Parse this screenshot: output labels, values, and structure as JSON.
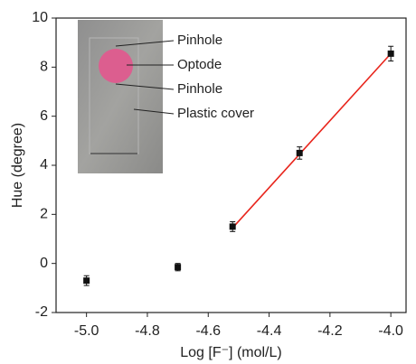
{
  "chart_data": {
    "type": "scatter",
    "xlabel": "Log [F⁻] (mol/L)",
    "ylabel": "Hue (degree)",
    "x": [
      -5.0,
      -4.7,
      -4.52,
      -4.3,
      -4.0
    ],
    "values": [
      -0.7,
      -0.15,
      1.5,
      4.5,
      8.55
    ],
    "errors": [
      0.2,
      0.15,
      0.2,
      0.25,
      0.3
    ],
    "color": "#111111",
    "fit": {
      "x": [
        -4.52,
        -4.0
      ],
      "values": [
        1.45,
        8.55
      ],
      "color": "#e8251c"
    },
    "xlim": [
      -5.1,
      -3.95
    ],
    "ylim": [
      -2,
      10
    ],
    "xticks": [
      {
        "value": -5,
        "label": "-5.0"
      },
      -4.8,
      -4.6,
      -4.4,
      -4.2,
      {
        "value": -4,
        "label": "-4.0"
      }
    ],
    "yticks": [
      -2,
      0,
      2,
      4,
      6,
      8,
      10
    ],
    "annotations": [
      "Pinhole",
      "Optode",
      "Pinhole",
      "Plastic cover"
    ]
  }
}
